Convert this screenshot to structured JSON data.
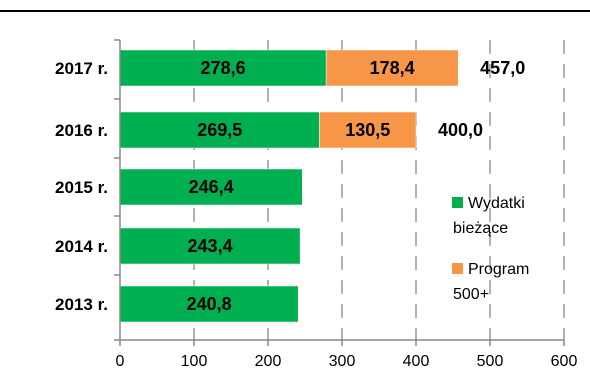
{
  "chart_data": {
    "type": "bar",
    "orientation": "horizontal",
    "stacked": true,
    "title": "",
    "xlabel": "",
    "ylabel": "",
    "categories": [
      "2017 r.",
      "2016 r.",
      "2015 r.",
      "2014 r.",
      "2013 r."
    ],
    "series": [
      {
        "name": "Wydatki bieżące",
        "legend_lines": [
          "Wydatki",
          "bieżące"
        ],
        "color": "#00b050",
        "values": [
          278.6,
          269.5,
          246.4,
          243.4,
          240.8
        ],
        "labels": [
          "278,6",
          "269,5",
          "246,4",
          "243,4",
          "240,8"
        ]
      },
      {
        "name": "Program 500+",
        "legend_lines": [
          "Program",
          "500+"
        ],
        "color": "#f79646",
        "values": [
          178.4,
          130.5,
          null,
          null,
          null
        ],
        "labels": [
          "178,4",
          "130,5",
          "",
          "",
          ""
        ]
      }
    ],
    "totals": [
      "457,0",
      "400,0",
      "",
      "",
      ""
    ],
    "xlim": [
      0,
      600
    ],
    "xticks": [
      0,
      100,
      200,
      300,
      400,
      500,
      600
    ],
    "grid": "vertical dashed",
    "legend_position": "right"
  }
}
